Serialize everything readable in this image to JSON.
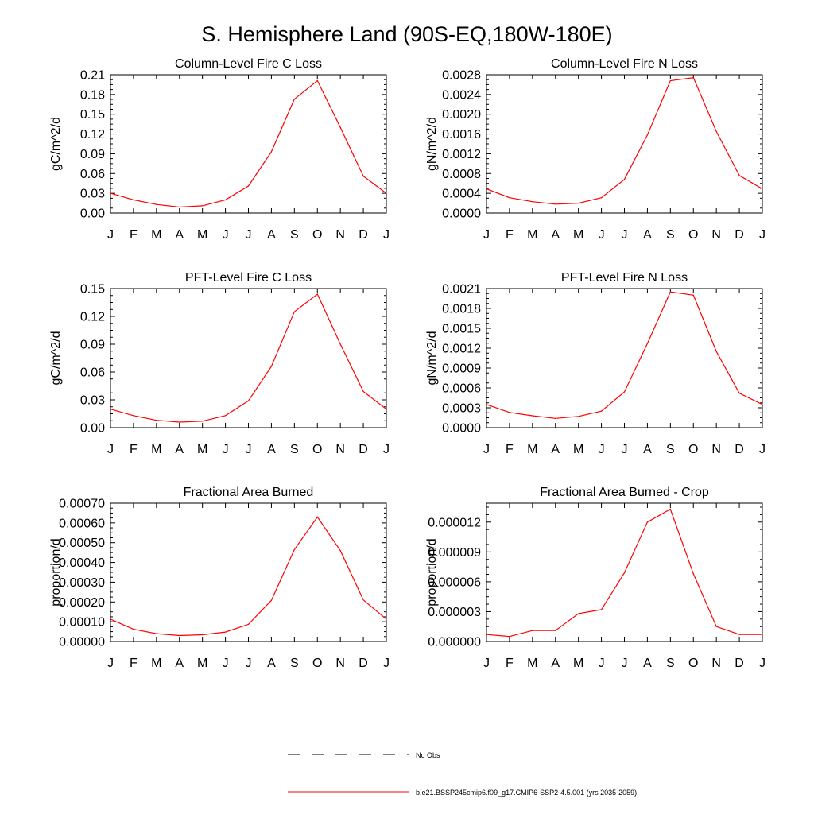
{
  "page_title": "S. Hemisphere Land (90S-EQ,180W-180E)",
  "month_labels": [
    "J",
    "F",
    "M",
    "A",
    "M",
    "J",
    "J",
    "A",
    "S",
    "O",
    "N",
    "D",
    "J"
  ],
  "series_color": "#ff0000",
  "legend": {
    "obs_label": "No Obs",
    "model_label": "b.e21.BSSP245cmip6.f09_g17.CMIP6-SSP2-4.5.001 (yrs 2035-2059)"
  },
  "chart_data": [
    {
      "type": "line",
      "title": "Column-Level Fire C Loss",
      "ylabel": "gC/m^2/d",
      "ylim": [
        0,
        0.21
      ],
      "ytick_labels": [
        "0.00",
        "0.03",
        "0.06",
        "0.09",
        "0.12",
        "0.15",
        "0.18",
        "0.21"
      ],
      "x": [
        "J",
        "F",
        "M",
        "A",
        "M",
        "J",
        "J",
        "A",
        "S",
        "O",
        "N",
        "D",
        "J"
      ],
      "series": [
        {
          "values": [
            0.03,
            0.02,
            0.013,
            0.009,
            0.011,
            0.02,
            0.041,
            0.093,
            0.173,
            0.201,
            0.13,
            0.056,
            0.03
          ]
        }
      ]
    },
    {
      "type": "line",
      "title": "Column-Level Fire N Loss",
      "ylabel": "gN/m^2/d",
      "ylim": [
        0,
        0.0028
      ],
      "ytick_labels": [
        "0.0000",
        "0.0004",
        "0.0008",
        "0.0012",
        "0.0016",
        "0.0020",
        "0.0024",
        "0.0028"
      ],
      "x": [
        "J",
        "F",
        "M",
        "A",
        "M",
        "J",
        "J",
        "A",
        "S",
        "O",
        "N",
        "D",
        "J"
      ],
      "series": [
        {
          "values": [
            0.00049,
            0.00031,
            0.00023,
            0.00018,
            0.0002,
            0.00031,
            0.00068,
            0.00158,
            0.00268,
            0.00274,
            0.00165,
            0.00076,
            0.00049
          ]
        }
      ]
    },
    {
      "type": "line",
      "title": "PFT-Level Fire C Loss",
      "ylabel": "gC/m^2/d",
      "ylim": [
        0,
        0.15
      ],
      "ytick_labels": [
        "0.00",
        "0.03",
        "0.06",
        "0.09",
        "0.12",
        "0.15"
      ],
      "x": [
        "J",
        "F",
        "M",
        "A",
        "M",
        "J",
        "J",
        "A",
        "S",
        "O",
        "N",
        "D",
        "J"
      ],
      "series": [
        {
          "values": [
            0.02,
            0.013,
            0.008,
            0.006,
            0.007,
            0.013,
            0.029,
            0.066,
            0.125,
            0.144,
            0.09,
            0.039,
            0.02
          ]
        }
      ]
    },
    {
      "type": "line",
      "title": "PFT-Level Fire N Loss",
      "ylabel": "gN/m^2/d",
      "ylim": [
        0,
        0.0021
      ],
      "ytick_labels": [
        "0.0000",
        "0.0003",
        "0.0006",
        "0.0009",
        "0.0012",
        "0.0015",
        "0.0018",
        "0.0021"
      ],
      "x": [
        "J",
        "F",
        "M",
        "A",
        "M",
        "J",
        "J",
        "A",
        "S",
        "O",
        "N",
        "D",
        "J"
      ],
      "series": [
        {
          "values": [
            0.00035,
            0.00023,
            0.00018,
            0.00014,
            0.00017,
            0.00025,
            0.00054,
            0.00127,
            0.00205,
            0.002,
            0.00115,
            0.00052,
            0.00035
          ]
        }
      ]
    },
    {
      "type": "line",
      "title": "Fractional Area Burned",
      "ylabel": "proportion/d",
      "ylim": [
        0,
        0.0007
      ],
      "ytick_labels": [
        "0.00000",
        "0.00010",
        "0.00020",
        "0.00030",
        "0.00040",
        "0.00050",
        "0.00060",
        "0.00070"
      ],
      "x": [
        "J",
        "F",
        "M",
        "A",
        "M",
        "J",
        "J",
        "A",
        "S",
        "O",
        "N",
        "D",
        "J"
      ],
      "series": [
        {
          "values": [
            0.000113,
            6.2e-05,
            4e-05,
            3e-05,
            3.4e-05,
            4.8e-05,
            8.7e-05,
            0.000208,
            0.000465,
            0.00063,
            0.00046,
            0.00021,
            0.000113
          ]
        }
      ]
    },
    {
      "type": "line",
      "title": "Fractional Area Burned - Crop",
      "ylabel": "proportion/d",
      "ylim": [
        0,
        1.39e-05
      ],
      "ytick_labels": [
        "0.000000",
        "0.000003",
        "0.000006",
        "0.000009",
        "0.000012"
      ],
      "ytick_values": [
        0,
        3e-06,
        6e-06,
        9e-06,
        1.2e-05
      ],
      "x": [
        "J",
        "F",
        "M",
        "A",
        "M",
        "J",
        "J",
        "A",
        "S",
        "O",
        "N",
        "D",
        "J"
      ],
      "series": [
        {
          "values": [
            7e-07,
            5e-07,
            1.1e-06,
            1.1e-06,
            2.8e-06,
            3.2e-06,
            6.9e-06,
            1.2e-05,
            1.33e-05,
            6.8e-06,
            1.5e-06,
            7e-07,
            7e-07
          ]
        }
      ]
    }
  ]
}
